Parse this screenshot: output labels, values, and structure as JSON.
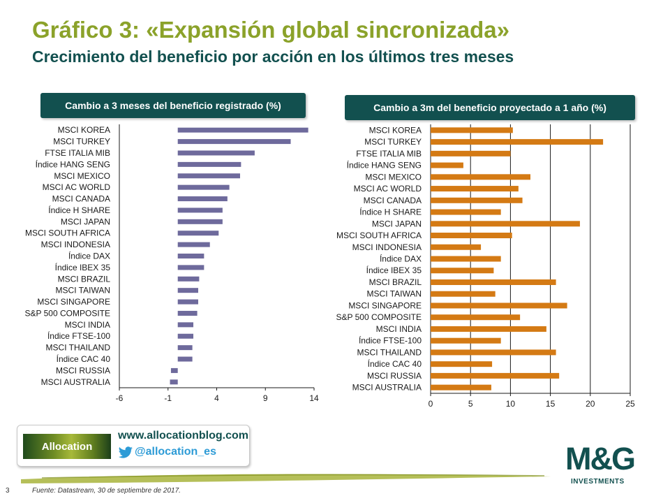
{
  "header": {
    "title": "Gráfico 3: «Expansión global sincronizada»",
    "subtitle": "Crecimiento del beneficio por acción en los últimos tres meses"
  },
  "colors": {
    "left_bar": "#6e6a9c",
    "right_bar": "#d47a14",
    "dark_teal": "#12504f",
    "accent": "#8ba22a"
  },
  "chart_data": [
    {
      "type": "bar",
      "orientation": "horizontal",
      "title": "Cambio a 3 meses del beneficio registrado (%)",
      "categories": [
        "MSCI KOREA",
        "MSCI TURKEY",
        "FTSE ITALIA MIB",
        "Índice HANG SENG",
        "MSCI MEXICO",
        "MSCI AC WORLD",
        "MSCI CANADA",
        "Índice H SHARE",
        "MSCI JAPAN",
        "MSCI SOUTH AFRICA",
        "MSCI INDONESIA",
        "Índice DAX",
        "Índice IBEX 35",
        "MSCI BRAZIL",
        "MSCI TAIWAN",
        "MSCI SINGAPORE",
        "S&P 500 COMPOSITE",
        "MSCI INDIA",
        "Índice FTSE-100",
        "MSCI THAILAND",
        "Índice CAC 40",
        "MSCI RUSSIA",
        "MSCI AUSTRALIA"
      ],
      "values": [
        13.4,
        11.6,
        7.9,
        6.5,
        6.4,
        5.3,
        5.1,
        4.6,
        4.6,
        4.2,
        3.3,
        2.7,
        2.7,
        2.2,
        2.1,
        2.1,
        2.0,
        1.6,
        1.6,
        1.5,
        1.5,
        -0.7,
        -0.8
      ],
      "xticks": [
        -6,
        -1,
        4,
        9,
        14
      ],
      "xlim": [
        -6,
        14
      ],
      "xtick_labels": [
        "-6",
        "-1",
        "4",
        "9",
        "14"
      ]
    },
    {
      "type": "bar",
      "orientation": "horizontal",
      "title": "Cambio a 3m del beneficio proyectado a 1 año (%)",
      "categories": [
        "MSCI KOREA",
        "MSCI TURKEY",
        "FTSE ITALIA MIB",
        "Índice HANG SENG",
        "MSCI MEXICO",
        "MSCI AC WORLD",
        "MSCI CANADA",
        "Índice H SHARE",
        "MSCI JAPAN",
        "MSCI SOUTH AFRICA",
        "MSCI INDONESIA",
        "Índice DAX",
        "Índice IBEX 35",
        "MSCI BRAZIL",
        "MSCI TAIWAN",
        "MSCI SINGAPORE",
        "S&P 500 COMPOSITE",
        "MSCI INDIA",
        "Índice FTSE-100",
        "MSCI THAILAND",
        "Índice CAC 40",
        "MSCI RUSSIA",
        "MSCI AUSTRALIA"
      ],
      "values": [
        10.3,
        21.6,
        10.0,
        4.1,
        12.5,
        11.0,
        11.5,
        8.8,
        18.7,
        10.2,
        6.3,
        8.8,
        7.9,
        15.7,
        8.1,
        17.1,
        11.2,
        14.5,
        8.8,
        15.7,
        7.7,
        16.1,
        7.6
      ],
      "xticks": [
        0,
        5,
        10,
        15,
        20,
        25
      ],
      "xlim": [
        0,
        25
      ],
      "xtick_labels": [
        "0",
        "5",
        "10",
        "15",
        "20",
        "25"
      ]
    }
  ],
  "social": {
    "logo_text": "Allocation",
    "website": "www.allocationblog.com",
    "twitter_handle": "@allocation_es"
  },
  "brand": {
    "name": "M&G",
    "sub": "INVESTMENTS"
  },
  "footer": {
    "page_number": "3",
    "source": "Fuente: Datastream, 30 de septiembre de 2017."
  }
}
